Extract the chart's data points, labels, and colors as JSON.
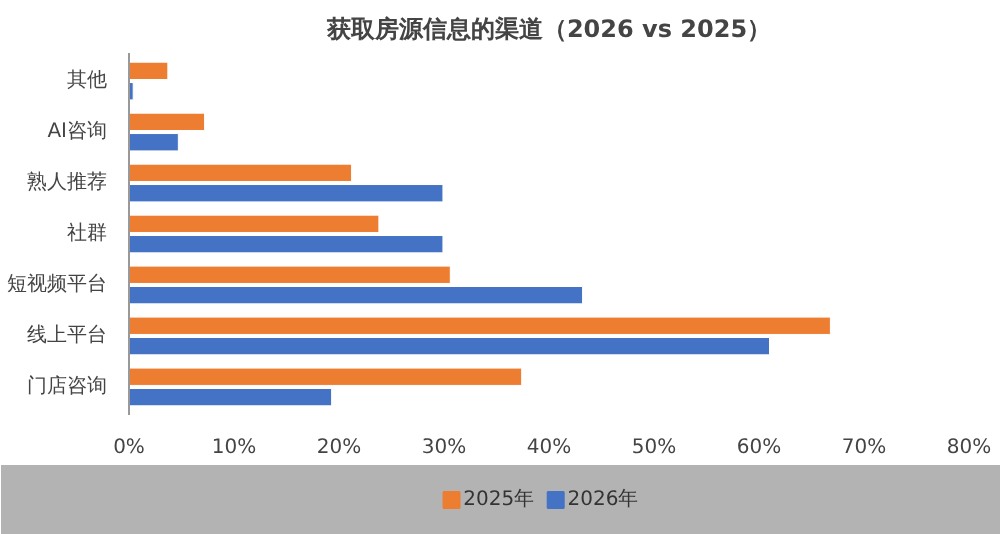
{
  "chart_data": {
    "type": "bar",
    "orientation": "horizontal",
    "title": "获取房源信息的渠道（2026 vs 2025）",
    "categories": [
      "其他",
      "AI咨询",
      "熟人推荐",
      "社群",
      "短视频平台",
      "线上平台",
      "门店咨询"
    ],
    "series": [
      {
        "name": "2025年",
        "color": "#ed7d31",
        "values": [
          3.7,
          7.2,
          21.2,
          23.8,
          30.6,
          66.8,
          37.4
        ]
      },
      {
        "name": "2026年",
        "color": "#4472c4",
        "values": [
          0.4,
          4.7,
          29.9,
          29.9,
          43.2,
          61.0,
          19.3
        ]
      }
    ],
    "xlim": [
      0,
      80
    ],
    "xticks": [
      {
        "value": 0,
        "label": "0%"
      },
      {
        "value": 10,
        "label": "10%"
      },
      {
        "value": 20,
        "label": "20%"
      },
      {
        "value": 30,
        "label": "30%"
      },
      {
        "value": 40,
        "label": "40%"
      },
      {
        "value": 50,
        "label": "50%"
      },
      {
        "value": 60,
        "label": "60%"
      },
      {
        "value": 70,
        "label": "70%"
      },
      {
        "value": 80,
        "label": "80%"
      }
    ],
    "grid": false,
    "legend": "bottom"
  }
}
